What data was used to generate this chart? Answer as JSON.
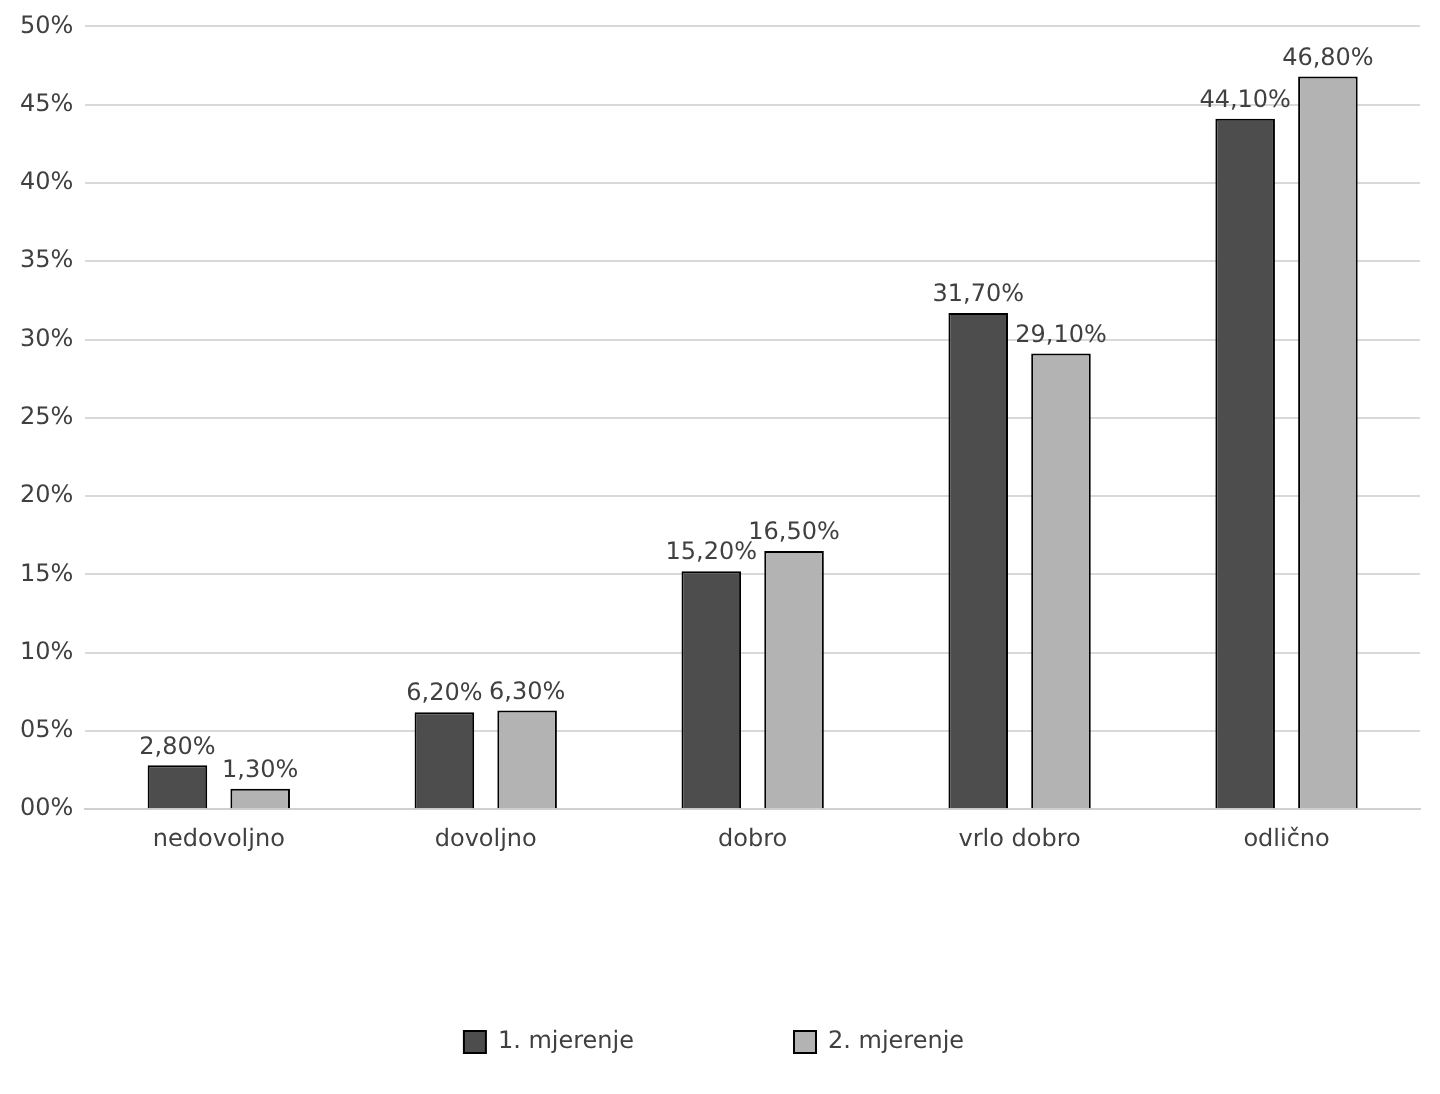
{
  "chart_data": {
    "type": "bar",
    "categories": [
      "nedovoljno",
      "dovoljno",
      "dobro",
      "vrlo dobro",
      "odlično"
    ],
    "series": [
      {
        "name": "1. mjerenje",
        "color": "#4d4d4d",
        "values": [
          2.8,
          6.2,
          15.2,
          31.7,
          44.1
        ],
        "value_labels": [
          "2,80%",
          "6,20%",
          "15,20%",
          "31,70%",
          "44,10%"
        ]
      },
      {
        "name": "2. mjerenje",
        "color": "#b3b3b3",
        "values": [
          1.3,
          6.3,
          16.5,
          29.1,
          46.8
        ],
        "value_labels": [
          "1,30%",
          "6,30%",
          "16,50%",
          "29,10%",
          "46,80%"
        ]
      }
    ],
    "ylim": [
      0,
      50
    ],
    "yticks": [
      {
        "value": 0,
        "label": "00%"
      },
      {
        "value": 5,
        "label": "05%"
      },
      {
        "value": 10,
        "label": "10%"
      },
      {
        "value": 15,
        "label": "15%"
      },
      {
        "value": 20,
        "label": "20%"
      },
      {
        "value": 25,
        "label": "25%"
      },
      {
        "value": 30,
        "label": "30%"
      },
      {
        "value": 35,
        "label": "35%"
      },
      {
        "value": 40,
        "label": "40%"
      },
      {
        "value": 45,
        "label": "45%"
      },
      {
        "value": 50,
        "label": "50%"
      }
    ],
    "grid": "y",
    "legend": "bottom"
  }
}
